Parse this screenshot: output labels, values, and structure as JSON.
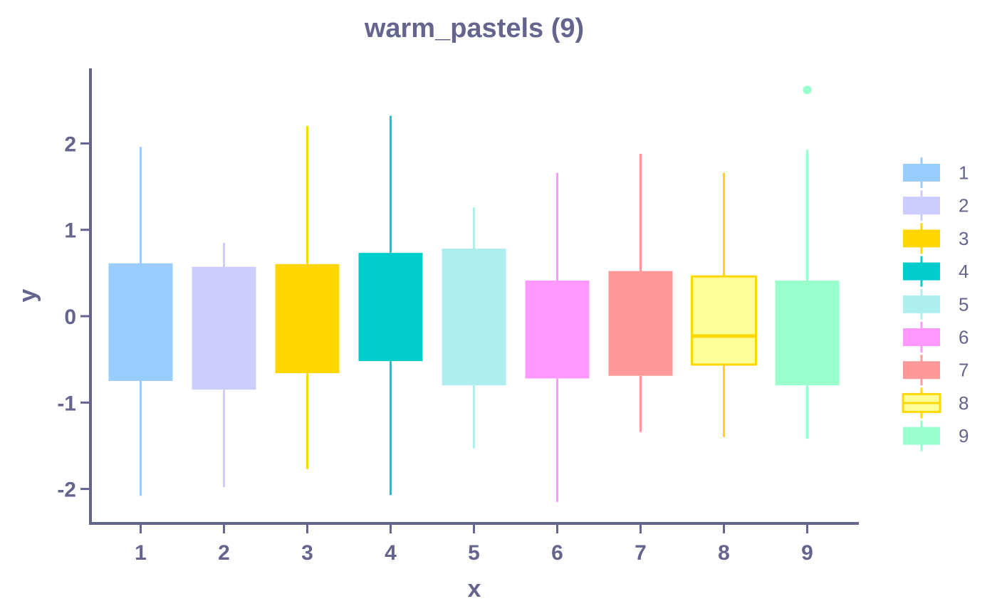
{
  "chart_data": {
    "type": "boxplot",
    "title": "warm_pastels (9)",
    "xlabel": "x",
    "ylabel": "y",
    "ylim": [
      -2.35,
      2.9
    ],
    "y_ticks": [
      -2,
      -1,
      0,
      1,
      2
    ],
    "categories": [
      "1",
      "2",
      "3",
      "4",
      "5",
      "6",
      "7",
      "8",
      "9"
    ],
    "legend_placement": "right",
    "grid": false,
    "series": [
      {
        "name": "1",
        "color": "#99ccff",
        "whisker_low": -2.08,
        "q1": -0.75,
        "median": 0.6,
        "q3": 0.6,
        "whisker_high": 1.96,
        "outliers": []
      },
      {
        "name": "2",
        "color": "#ccccff",
        "whisker_low": -1.98,
        "q1": -0.85,
        "median": 0.56,
        "q3": 0.56,
        "whisker_high": 0.85,
        "outliers": []
      },
      {
        "name": "3",
        "color": "#ffd700",
        "whisker_low": -1.77,
        "q1": -0.66,
        "median": 0.59,
        "q3": 0.59,
        "whisker_high": 2.2,
        "outliers": []
      },
      {
        "name": "4",
        "color": "#00cccc",
        "whisker_low": -2.07,
        "q1": -0.52,
        "median": 0.72,
        "q3": 0.72,
        "whisker_high": 2.32,
        "outliers": []
      },
      {
        "name": "5",
        "color": "#afeeee",
        "whisker_low": -1.53,
        "q1": -0.8,
        "median": 0.77,
        "q3": 0.77,
        "whisker_high": 1.26,
        "outliers": []
      },
      {
        "name": "6",
        "color": "#ff99ff",
        "whisker_low": -2.15,
        "q1": -0.72,
        "median": 0.4,
        "q3": 0.4,
        "whisker_high": 1.66,
        "outliers": []
      },
      {
        "name": "7",
        "color": "#ff9999",
        "whisker_low": -1.34,
        "q1": -0.69,
        "median": 0.51,
        "q3": 0.51,
        "whisker_high": 1.88,
        "outliers": []
      },
      {
        "name": "8",
        "color": "#ffff99",
        "stroke": "#ffd700",
        "whisker_low": -1.4,
        "q1": -0.56,
        "median": -0.23,
        "q3": 0.46,
        "whisker_high": 1.66,
        "outliers": []
      },
      {
        "name": "9",
        "color": "#99ffcc",
        "whisker_low": -1.42,
        "q1": -0.8,
        "median": 0.4,
        "q3": 0.4,
        "whisker_high": 1.93,
        "outliers": [
          2.62
        ]
      }
    ],
    "colors": {
      "axis": "#64648f",
      "background": "#ffffff"
    }
  }
}
